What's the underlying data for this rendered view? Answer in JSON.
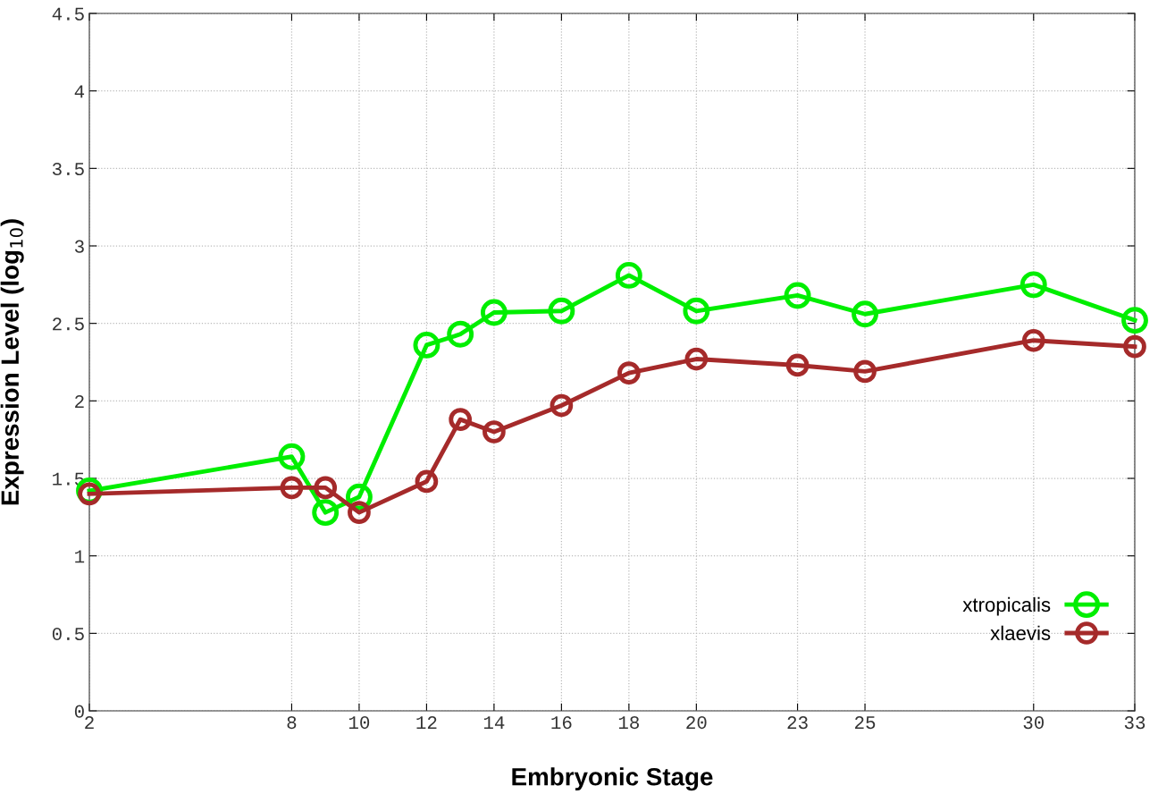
{
  "chart_data": {
    "type": "line",
    "xlabel": "Embryonic Stage",
    "ylabel": "Expression Level (log$_{10}$)",
    "xlim": [
      2,
      33
    ],
    "xticks": [
      2,
      8,
      10,
      12,
      14,
      16,
      18,
      20,
      23,
      25,
      30,
      33
    ],
    "ylim": [
      0,
      4.5
    ],
    "yticks": [
      0,
      0.5,
      1,
      1.5,
      2,
      2.5,
      3,
      3.5,
      4,
      4.5
    ],
    "x": [
      2,
      8,
      9,
      10,
      12,
      13,
      14,
      16,
      18,
      20,
      23,
      25,
      30,
      33
    ],
    "series": [
      {
        "name": "xtropicalis",
        "color": "#00ee00",
        "values": [
          1.42,
          1.64,
          1.28,
          1.38,
          2.36,
          2.43,
          2.57,
          2.58,
          2.81,
          2.58,
          2.68,
          2.56,
          2.75,
          2.52
        ]
      },
      {
        "name": "xlaevis",
        "color": "#a52a2a",
        "values": [
          1.4,
          1.44,
          1.44,
          1.28,
          1.48,
          1.88,
          1.8,
          1.97,
          2.18,
          2.27,
          2.23,
          2.19,
          2.39,
          2.35
        ]
      }
    ],
    "grid": true,
    "legend": "bottom right",
    "marker": "circle",
    "line_style": "solid"
  }
}
